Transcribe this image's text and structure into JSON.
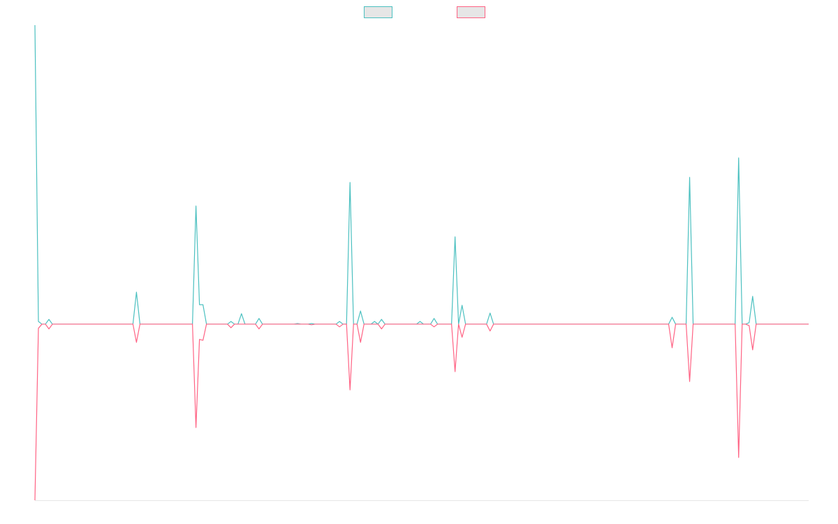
{
  "chart_data": {
    "type": "line",
    "legend": "top",
    "grid": false,
    "ylim": [
      -58.9,
      100
    ],
    "series": [
      {
        "color": "#4bc0c0",
        "values": [
          100,
          0.9,
          0,
          0,
          1.6,
          0,
          0,
          0,
          0,
          0,
          0,
          0,
          0,
          0,
          0,
          0,
          0,
          0,
          0,
          0,
          0,
          0,
          0,
          0,
          0,
          0,
          0,
          0,
          0,
          10.7,
          0,
          0,
          0,
          0,
          0,
          0,
          0,
          0,
          0,
          0,
          0,
          0,
          0,
          0,
          0,
          0,
          39.5,
          6.5,
          6.5,
          0,
          0,
          0,
          0,
          0,
          0,
          0,
          0.9,
          0,
          0,
          3.5,
          0,
          0,
          0,
          0,
          1.9,
          0,
          0,
          0,
          0,
          0,
          0,
          0,
          0,
          0,
          0,
          0.2,
          0,
          0,
          0,
          0.2,
          0,
          0,
          0,
          0,
          0,
          0,
          0,
          0.9,
          0,
          0,
          47.4,
          0,
          0,
          4.4,
          0,
          0,
          0,
          0.9,
          0,
          1.6,
          0,
          0,
          0,
          0,
          0,
          0,
          0,
          0,
          0,
          0,
          0.9,
          0,
          0,
          0,
          1.9,
          0,
          0,
          0,
          0,
          0,
          29.2,
          0,
          6.3,
          0,
          0,
          0,
          0,
          0,
          0,
          0,
          3.7,
          0,
          0,
          0,
          0,
          0,
          0,
          0,
          0,
          0,
          0,
          0,
          0,
          0,
          0,
          0,
          0,
          0,
          0,
          0,
          0,
          0,
          0,
          0,
          0,
          0,
          0,
          0,
          0,
          0,
          0,
          0,
          0,
          0,
          0,
          0,
          0,
          0,
          0,
          0,
          0,
          0,
          0,
          0,
          0,
          0,
          0,
          0,
          0,
          0,
          0,
          0,
          2.3,
          0,
          0,
          0,
          0,
          49.1,
          0,
          0,
          0,
          0,
          0,
          0,
          0,
          0,
          0,
          0,
          0,
          0,
          0,
          55.6,
          0,
          0,
          0.5,
          9.3,
          0,
          0,
          0,
          0,
          0,
          0,
          0,
          0,
          0,
          0,
          0,
          0,
          0,
          0,
          0,
          0
        ]
      },
      {
        "color": "#ff6384",
        "values": [
          -58.9,
          -1.4,
          0,
          0,
          -1.6,
          0,
          0,
          0,
          0,
          0,
          0,
          0,
          0,
          0,
          0,
          0,
          0,
          0,
          0,
          0,
          0,
          0,
          0,
          0,
          0,
          0,
          0,
          0,
          0,
          -6.1,
          0,
          0,
          0,
          0,
          0,
          0,
          0,
          0,
          0,
          0,
          0,
          0,
          0,
          0,
          0,
          0,
          -34.6,
          -5.1,
          -5.4,
          0,
          0,
          0,
          0,
          0,
          0,
          0,
          -1.2,
          0,
          0,
          0,
          0,
          0,
          0,
          0,
          -1.6,
          0,
          0,
          0,
          0,
          0,
          0,
          0,
          0,
          0,
          0,
          0,
          0,
          0,
          0,
          -0.2,
          0,
          0,
          0,
          0,
          0,
          0,
          0,
          -0.9,
          0,
          0,
          -22,
          0,
          0,
          -6.1,
          0,
          0,
          0,
          0,
          0,
          -1.6,
          0,
          0,
          0,
          0,
          0,
          0,
          0,
          0,
          0,
          0,
          0,
          0,
          0,
          0,
          -0.9,
          0,
          0,
          0,
          0,
          0,
          -15.9,
          0,
          -4.4,
          0,
          0,
          0,
          0,
          0,
          0,
          0,
          -2.3,
          0,
          0,
          0,
          0,
          0,
          0,
          0,
          0,
          0,
          0,
          0,
          0,
          0,
          0,
          0,
          0,
          0,
          0,
          0,
          0,
          0,
          0,
          0,
          0,
          0,
          0,
          0,
          0,
          0,
          0,
          0,
          0,
          0,
          0,
          0,
          0,
          0,
          0,
          0,
          0,
          0,
          0,
          0,
          0,
          0,
          0,
          0,
          0,
          0,
          0,
          0,
          -7.9,
          0,
          0,
          0,
          0,
          -19.2,
          0,
          0,
          0,
          0,
          0,
          0,
          0,
          0,
          0,
          0,
          0,
          0,
          0,
          -44.6,
          0,
          0,
          -0.5,
          -8.6,
          0,
          0,
          0,
          0,
          0,
          0,
          0,
          0,
          0,
          0,
          0,
          0,
          0,
          0,
          0,
          0
        ]
      }
    ]
  }
}
